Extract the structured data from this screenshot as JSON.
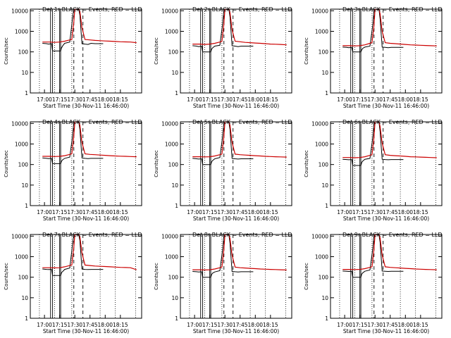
{
  "figure": {
    "colors": {
      "events": "#000000",
      "lld": "#cc0000",
      "frame": "#000000"
    },
    "ylabel": "Counts/sec",
    "y_ticks": [
      "1",
      "10",
      "100",
      "1000",
      "10000"
    ],
    "x_ticks": [
      "17:00",
      "17:15",
      "17:30",
      "17:45",
      "18:00",
      "18:15"
    ],
    "xlabels": [
      "Start Time (30-Nov-11 16:46:00)",
      "Start Time (30-Nov-11 16:46:00)",
      "Start Time (30-Nov-11 16:46:00)",
      "Start Time (30-Nov-11 16:46:00)",
      "Start Time (30-Nov-11 16:46:00)",
      "Start Time (30-Nov-11 16:46:00)",
      "Start Time (30-Nov-11 16:46:00)",
      "Start Time (30-Nov-11 16:46:00)",
      "Start Time (30-Nov-11 16:46:00)"
    ]
  },
  "chart_data": [
    {
      "type": "line",
      "title": "Det 1r BLACK = Events, RED = LLD",
      "xlabel": "Start Time (30-Nov-11 16:46:00)",
      "ylabel": "Counts/sec",
      "ylim": [
        1,
        12000
      ],
      "yscale": "log",
      "xlim_min": [
        -2,
        91
      ],
      "grid": false,
      "series": [
        {
          "name": "Events",
          "x": [
            -2,
            2,
            4,
            7,
            8,
            16,
            17,
            17.5,
            18,
            20,
            25,
            28,
            29,
            30,
            34,
            35,
            37,
            40,
            43,
            46,
            50,
            56,
            58
          ],
          "y": [
            260,
            250,
            240,
            250,
            110,
            110,
            170,
            170,
            200,
            260,
            300,
            5500,
            12000,
            12000,
            11000,
            6000,
            250,
            240,
            230,
            260,
            250,
            250,
            250
          ]
        },
        {
          "name": "LLD",
          "x": [
            -2,
            5,
            10,
            15,
            20,
            25,
            27,
            29,
            30,
            34,
            35,
            37,
            40,
            45,
            50,
            55,
            60,
            65,
            70,
            75,
            80,
            85,
            91
          ],
          "y": [
            300,
            300,
            290,
            300,
            330,
            380,
            400,
            3000,
            12000,
            12000,
            9000,
            1500,
            400,
            380,
            360,
            350,
            340,
            330,
            320,
            310,
            305,
            300,
            280
          ]
        }
      ]
    },
    {
      "type": "line",
      "title": "Det 2r BLACK = Events, RED = LLD",
      "xlabel": "Start Time (30-Nov-11 16:46:00)",
      "ylabel": "Counts/sec",
      "ylim": [
        1,
        12000
      ],
      "yscale": "log",
      "xlim_min": [
        -2,
        91
      ],
      "grid": false,
      "series": [
        {
          "name": "Events",
          "x": [
            -2,
            2,
            4,
            7,
            8,
            16,
            17,
            18,
            20,
            25,
            28,
            29,
            30,
            34,
            35,
            37,
            40,
            43,
            46,
            50,
            56,
            58
          ],
          "y": [
            200,
            190,
            180,
            190,
            100,
            100,
            140,
            160,
            190,
            210,
            3000,
            12000,
            12000,
            11000,
            5000,
            200,
            190,
            180,
            190,
            190,
            190,
            190
          ]
        },
        {
          "name": "LLD",
          "x": [
            -2,
            5,
            10,
            15,
            20,
            25,
            27,
            29,
            30,
            34,
            35,
            37,
            40,
            45,
            50,
            55,
            60,
            65,
            70,
            75,
            80,
            85,
            91
          ],
          "y": [
            240,
            240,
            230,
            240,
            260,
            300,
            320,
            2500,
            12000,
            12000,
            8000,
            1200,
            330,
            310,
            290,
            280,
            270,
            260,
            250,
            240,
            235,
            230,
            220
          ]
        }
      ]
    },
    {
      "type": "line",
      "title": "Det 3r BLACK = Events, RED = LLD",
      "xlabel": "Start Time (30-Nov-11 16:46:00)",
      "ylabel": "Counts/sec",
      "ylim": [
        1,
        12000
      ],
      "yscale": "log",
      "xlim_min": [
        -2,
        91
      ],
      "grid": false,
      "series": [
        {
          "name": "Events",
          "x": [
            -2,
            2,
            4,
            7,
            8,
            16,
            17,
            18,
            20,
            25,
            28,
            29,
            30,
            34,
            35,
            37,
            40,
            43,
            46,
            50,
            56,
            58
          ],
          "y": [
            170,
            165,
            160,
            165,
            100,
            100,
            130,
            150,
            170,
            190,
            2500,
            12000,
            12000,
            11000,
            4000,
            170,
            165,
            160,
            165,
            165,
            165,
            165
          ]
        },
        {
          "name": "LLD",
          "x": [
            -2,
            5,
            10,
            15,
            20,
            25,
            27,
            29,
            30,
            34,
            35,
            37,
            40,
            45,
            50,
            55,
            60,
            65,
            70,
            75,
            80,
            85,
            91
          ],
          "y": [
            200,
            200,
            195,
            200,
            220,
            260,
            280,
            2000,
            12000,
            12000,
            7000,
            1000,
            280,
            260,
            250,
            240,
            230,
            220,
            215,
            210,
            205,
            200,
            195
          ]
        }
      ]
    },
    {
      "type": "line",
      "title": "Det 4r BLACK = Events, RED = LLD",
      "xlabel": "Start Time (30-Nov-11 16:46:00)",
      "ylabel": "Counts/sec",
      "ylim": [
        1,
        12000
      ],
      "yscale": "log",
      "xlim_min": [
        -2,
        91
      ],
      "grid": false,
      "series": [
        {
          "name": "Events",
          "x": [
            -2,
            2,
            4,
            7,
            8,
            16,
            17,
            18,
            20,
            25,
            28,
            29,
            30,
            34,
            35,
            37,
            40,
            43,
            46,
            50,
            56,
            58
          ],
          "y": [
            210,
            200,
            195,
            200,
            110,
            110,
            150,
            170,
            200,
            230,
            3000,
            12000,
            12000,
            11000,
            5000,
            210,
            200,
            195,
            200,
            200,
            200,
            200
          ]
        },
        {
          "name": "LLD",
          "x": [
            -2,
            5,
            10,
            15,
            20,
            25,
            27,
            29,
            30,
            34,
            35,
            37,
            40,
            45,
            50,
            55,
            60,
            65,
            70,
            75,
            80,
            85,
            91
          ],
          "y": [
            250,
            250,
            245,
            250,
            270,
            310,
            330,
            2500,
            12000,
            12000,
            8000,
            1200,
            330,
            310,
            300,
            290,
            280,
            270,
            260,
            255,
            250,
            245,
            240
          ]
        }
      ]
    },
    {
      "type": "line",
      "title": "Det 5r BLACK = Events, RED = LLD",
      "xlabel": "Start Time (30-Nov-11 16:46:00)",
      "ylabel": "Counts/sec",
      "ylim": [
        1,
        12000
      ],
      "yscale": "log",
      "xlim_min": [
        -2,
        91
      ],
      "grid": false,
      "series": [
        {
          "name": "Events",
          "x": [
            -2,
            2,
            4,
            7,
            8,
            16,
            17,
            18,
            20,
            25,
            28,
            29,
            30,
            34,
            35,
            37,
            40,
            43,
            46,
            50,
            56,
            58
          ],
          "y": [
            200,
            190,
            185,
            190,
            100,
            100,
            140,
            160,
            190,
            220,
            3000,
            12000,
            12000,
            11000,
            5000,
            200,
            190,
            185,
            190,
            190,
            190,
            190
          ]
        },
        {
          "name": "LLD",
          "x": [
            -2,
            5,
            10,
            15,
            20,
            25,
            27,
            29,
            30,
            34,
            35,
            37,
            40,
            45,
            50,
            55,
            60,
            65,
            70,
            75,
            80,
            85,
            91
          ],
          "y": [
            240,
            240,
            235,
            240,
            260,
            300,
            320,
            2500,
            12000,
            12000,
            8000,
            1200,
            320,
            300,
            290,
            280,
            270,
            260,
            250,
            245,
            240,
            235,
            230
          ]
        }
      ]
    },
    {
      "type": "line",
      "title": "Det 6r BLACK = Events, RED = LLD",
      "xlabel": "Start Time (30-Nov-11 16:46:00)",
      "ylabel": "Counts/sec",
      "ylim": [
        1,
        12000
      ],
      "yscale": "log",
      "xlim_min": [
        -2,
        91
      ],
      "grid": false,
      "series": [
        {
          "name": "Events",
          "x": [
            -2,
            2,
            4,
            7,
            8,
            16,
            17,
            18,
            20,
            25,
            28,
            29,
            30,
            34,
            35,
            37,
            40,
            43,
            46,
            50,
            56,
            58
          ],
          "y": [
            180,
            175,
            170,
            175,
            90,
            90,
            130,
            150,
            180,
            200,
            2500,
            12000,
            12000,
            11000,
            4000,
            180,
            175,
            170,
            175,
            175,
            175,
            175
          ]
        },
        {
          "name": "LLD",
          "x": [
            -2,
            5,
            10,
            15,
            20,
            25,
            27,
            29,
            30,
            34,
            35,
            37,
            40,
            45,
            50,
            55,
            60,
            65,
            70,
            75,
            80,
            85,
            91
          ],
          "y": [
            220,
            220,
            215,
            220,
            240,
            280,
            300,
            2200,
            12000,
            12000,
            7000,
            1100,
            300,
            280,
            270,
            260,
            250,
            240,
            235,
            230,
            225,
            220,
            215
          ]
        }
      ]
    },
    {
      "type": "line",
      "title": "Det 7r BLACK = Events, RED = LLD",
      "xlabel": "Start Time (30-Nov-11 16:46:00)",
      "ylabel": "Counts/sec",
      "ylim": [
        1,
        12000
      ],
      "yscale": "log",
      "xlim_min": [
        -2,
        91
      ],
      "grid": false,
      "series": [
        {
          "name": "Events",
          "x": [
            -2,
            2,
            4,
            7,
            8,
            16,
            17,
            18,
            20,
            25,
            28,
            29,
            30,
            34,
            35,
            37,
            40,
            43,
            46,
            50,
            56,
            58
          ],
          "y": [
            250,
            240,
            235,
            240,
            120,
            120,
            170,
            190,
            240,
            280,
            5000,
            12000,
            12000,
            11000,
            6000,
            250,
            240,
            235,
            240,
            240,
            240,
            240
          ]
        },
        {
          "name": "LLD",
          "x": [
            -2,
            5,
            10,
            15,
            20,
            25,
            27,
            29,
            30,
            34,
            35,
            37,
            40,
            45,
            50,
            55,
            60,
            65,
            70,
            75,
            80,
            85,
            91
          ],
          "y": [
            290,
            290,
            285,
            290,
            320,
            370,
            390,
            3000,
            12000,
            12000,
            9000,
            1500,
            390,
            370,
            350,
            340,
            330,
            320,
            310,
            300,
            295,
            290,
            230
          ]
        }
      ]
    },
    {
      "type": "line",
      "title": "Det 8r BLACK = Events, RED = LLD",
      "xlabel": "Start Time (30-Nov-11 16:46:00)",
      "ylabel": "Counts/sec",
      "ylim": [
        1,
        12000
      ],
      "yscale": "log",
      "xlim_min": [
        -2,
        91
      ],
      "grid": false,
      "series": [
        {
          "name": "Events",
          "x": [
            -2,
            2,
            4,
            7,
            8,
            16,
            17,
            18,
            20,
            25,
            28,
            29,
            30,
            34,
            35,
            37,
            40,
            43,
            46,
            50,
            56,
            58
          ],
          "y": [
            190,
            185,
            180,
            185,
            100,
            100,
            140,
            160,
            180,
            210,
            2800,
            12000,
            12000,
            11000,
            4500,
            190,
            185,
            180,
            185,
            185,
            185,
            185
          ]
        },
        {
          "name": "LLD",
          "x": [
            -2,
            5,
            10,
            15,
            20,
            25,
            27,
            29,
            30,
            34,
            35,
            37,
            40,
            45,
            50,
            55,
            60,
            65,
            70,
            75,
            80,
            85,
            91
          ],
          "y": [
            230,
            230,
            225,
            230,
            250,
            290,
            310,
            2400,
            12000,
            12000,
            7500,
            1200,
            310,
            290,
            280,
            270,
            260,
            250,
            245,
            240,
            235,
            230,
            225
          ]
        }
      ]
    },
    {
      "type": "line",
      "title": "Det 9r BLACK = Events, RED = LLD",
      "xlabel": "Start Time (30-Nov-11 16:46:00)",
      "ylabel": "Counts/sec",
      "ylim": [
        1,
        12000
      ],
      "yscale": "log",
      "xlim_min": [
        -2,
        91
      ],
      "grid": false,
      "series": [
        {
          "name": "Events",
          "x": [
            -2,
            2,
            4,
            7,
            8,
            16,
            17,
            18,
            20,
            25,
            28,
            29,
            30,
            34,
            35,
            37,
            40,
            43,
            46,
            50,
            56,
            58
          ],
          "y": [
            200,
            195,
            190,
            195,
            100,
            100,
            145,
            165,
            195,
            225,
            3000,
            12000,
            12000,
            11000,
            5000,
            200,
            195,
            190,
            195,
            195,
            195,
            195
          ]
        },
        {
          "name": "LLD",
          "x": [
            -2,
            5,
            10,
            15,
            20,
            25,
            27,
            29,
            30,
            34,
            35,
            37,
            40,
            45,
            50,
            55,
            60,
            65,
            70,
            75,
            80,
            85,
            91
          ],
          "y": [
            240,
            240,
            235,
            240,
            260,
            300,
            320,
            2500,
            12000,
            12000,
            8000,
            1200,
            320,
            300,
            290,
            280,
            270,
            260,
            250,
            245,
            240,
            235,
            230
          ]
        }
      ]
    }
  ]
}
